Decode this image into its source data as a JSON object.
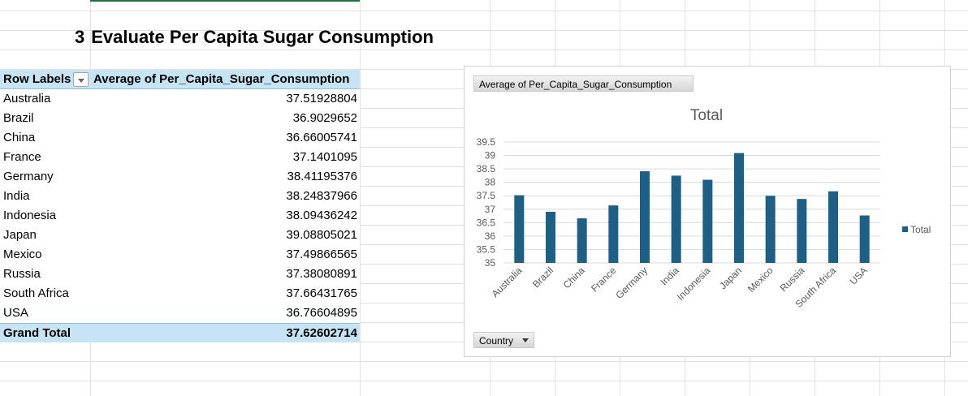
{
  "title": {
    "number": "3",
    "text": "Evaluate Per Capita Sugar Consumption"
  },
  "pivot": {
    "row_labels_header": "Row Labels",
    "value_header": "Average of Per_Capita_Sugar_Consumption",
    "rows": [
      {
        "label": "Australia",
        "value": "37.51928804"
      },
      {
        "label": "Brazil",
        "value": "36.9029652"
      },
      {
        "label": "China",
        "value": "36.66005741"
      },
      {
        "label": "France",
        "value": "37.1401095"
      },
      {
        "label": "Germany",
        "value": "38.41195376"
      },
      {
        "label": "India",
        "value": "38.24837966"
      },
      {
        "label": "Indonesia",
        "value": "38.09436242"
      },
      {
        "label": "Japan",
        "value": "39.08805021"
      },
      {
        "label": "Mexico",
        "value": "37.49866565"
      },
      {
        "label": "Russia",
        "value": "37.38080891"
      },
      {
        "label": "South Africa",
        "value": "37.66431765"
      },
      {
        "label": "USA",
        "value": "36.76604895"
      }
    ],
    "grand_total_label": "Grand Total",
    "grand_total_value": "37.62602714"
  },
  "chart": {
    "measure_button": "Average of Per_Capita_Sugar_Consumption",
    "axis_button": "Country",
    "bar_color": "#1f5f86",
    "legend_label": "Total"
  },
  "chart_data": {
    "type": "bar",
    "title": "Total",
    "categories": [
      "Australia",
      "Brazil",
      "China",
      "France",
      "Germany",
      "India",
      "Indonesia",
      "Japan",
      "Mexico",
      "Russia",
      "South Africa",
      "USA"
    ],
    "series": [
      {
        "name": "Total",
        "values": [
          37.51928804,
          36.9029652,
          36.66005741,
          37.1401095,
          38.41195376,
          38.24837966,
          38.09436242,
          39.08805021,
          37.49866565,
          37.38080891,
          37.66431765,
          36.76604895
        ]
      }
    ],
    "ylim": [
      35,
      39.5
    ],
    "yticks": [
      "35",
      "35.5",
      "36",
      "36.5",
      "37",
      "37.5",
      "38",
      "38.5",
      "39",
      "39.5"
    ],
    "grid": true,
    "legend": "right"
  }
}
